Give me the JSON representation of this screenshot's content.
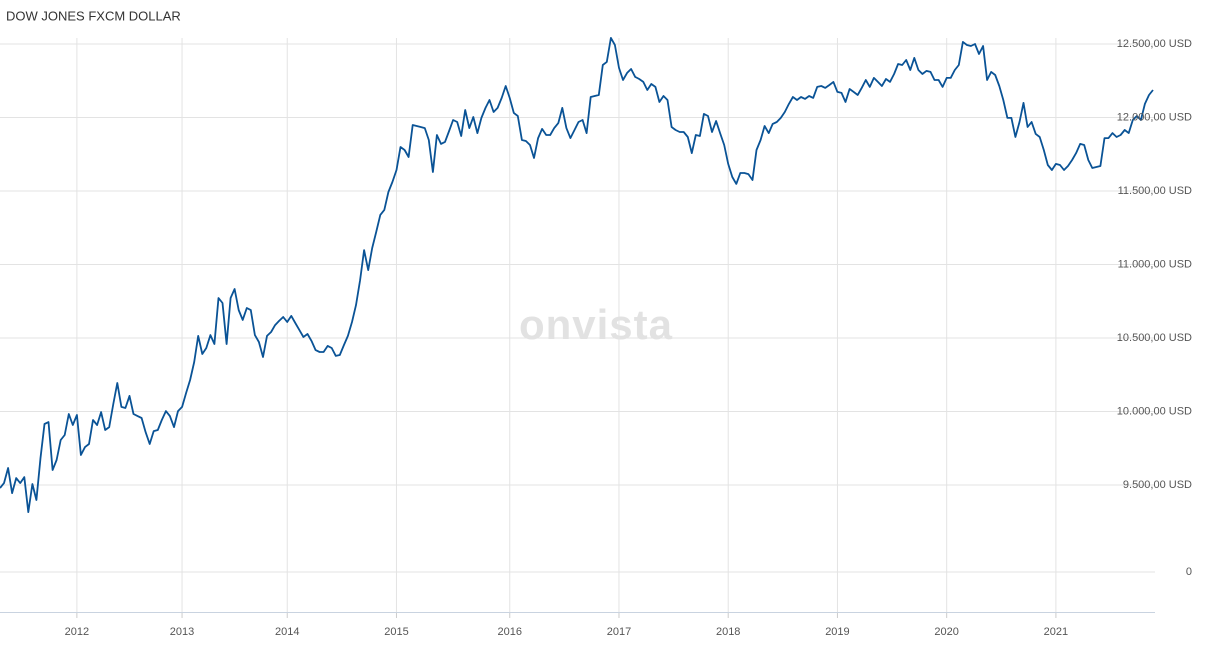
{
  "chart_data": [
    {
      "type": "line",
      "title": "DOW JONES FXCM DOLLAR",
      "watermark": "onvista",
      "color": "#0a5396",
      "ylim": [
        9262,
        12595
      ],
      "yticks": [
        {
          "value": 9500,
          "label": "9.500,00 USD"
        },
        {
          "value": 10000,
          "label": "10.000,00 USD"
        },
        {
          "value": 10500,
          "label": "10.500,00 USD"
        },
        {
          "value": 11000,
          "label": "11.000,00 USD"
        },
        {
          "value": 11500,
          "label": "11.500,00 USD"
        },
        {
          "value": 12000,
          "label": "12.000,00 USD"
        },
        {
          "value": 12500,
          "label": "12.500,00 USD"
        }
      ],
      "categories": [
        null,
        null,
        null,
        null,
        null,
        null,
        null,
        null,
        null,
        null,
        null,
        null,
        null,
        null,
        null,
        null,
        null,
        null,
        null,
        "2012",
        null,
        null,
        null,
        null,
        null,
        null,
        null,
        null,
        null,
        null,
        null,
        null,
        null,
        null,
        null,
        null,
        null,
        null,
        null,
        null,
        null,
        null,
        null,
        null,
        null,
        "2013",
        null,
        null,
        null,
        null,
        null,
        null,
        null,
        null,
        null,
        null,
        null,
        null,
        null,
        null,
        null,
        null,
        null,
        null,
        null,
        null,
        null,
        null,
        null,
        null,
        null,
        "2014",
        null,
        null,
        null,
        null,
        null,
        null,
        null,
        null,
        null,
        null,
        null,
        null,
        null,
        null,
        null,
        null,
        null,
        null,
        null,
        null,
        null,
        null,
        null,
        null,
        null,
        null,
        "2015",
        null,
        null,
        null,
        null,
        null,
        null,
        null,
        null,
        null,
        null,
        null,
        null,
        null,
        null,
        null,
        null,
        null,
        null,
        null,
        null,
        null,
        null,
        null,
        null,
        null,
        null,
        null,
        "2016",
        null,
        null,
        null,
        null,
        null,
        null,
        null,
        null,
        null,
        null,
        null,
        null,
        null,
        null,
        null,
        null,
        null,
        null,
        null,
        null,
        null,
        null,
        null,
        null,
        null,
        null,
        "2017",
        null,
        null,
        null,
        null,
        null,
        null,
        null,
        null,
        null,
        null,
        null,
        null,
        null,
        null,
        null,
        null,
        null,
        null,
        null,
        null,
        null,
        null,
        null,
        null,
        null,
        null,
        "2018",
        null,
        null,
        null,
        null,
        null,
        null,
        null,
        null,
        null,
        null,
        null,
        null,
        null,
        null,
        null,
        null,
        null,
        null,
        null,
        null,
        null,
        null,
        null,
        null,
        null,
        null,
        "2019",
        null,
        null,
        null,
        null,
        null,
        null,
        null,
        null,
        null,
        null,
        null,
        null,
        null,
        null,
        null,
        null,
        null,
        null,
        null,
        null,
        null,
        null,
        null,
        null,
        null,
        null,
        "2020",
        null,
        null,
        null,
        null,
        null,
        null,
        null,
        null,
        null,
        null,
        null,
        null,
        null,
        null,
        null,
        null,
        null,
        null,
        null,
        null,
        null,
        null,
        null,
        null,
        null,
        null,
        "2021",
        null,
        null,
        null,
        null,
        null,
        null,
        null,
        null,
        null,
        null,
        null,
        null,
        null,
        null,
        null,
        null,
        null,
        null,
        null,
        null,
        null,
        null,
        null,
        null
      ],
      "values": [
        9480,
        9513,
        9616,
        9445,
        9547,
        9513,
        9554,
        9316,
        9507,
        9398,
        9684,
        9915,
        9928,
        9602,
        9670,
        9806,
        9840,
        9983,
        9908,
        9976,
        9704,
        9758,
        9779,
        9942,
        9908,
        9996,
        9874,
        9894,
        10051,
        10194,
        10031,
        10024,
        10106,
        9983,
        9969,
        9956,
        9860,
        9779,
        9867,
        9874,
        9942,
        10003,
        9969,
        9894,
        10003,
        10031,
        10126,
        10214,
        10337,
        10514,
        10391,
        10432,
        10520,
        10459,
        10772,
        10738,
        10459,
        10772,
        10833,
        10690,
        10623,
        10704,
        10690,
        10520,
        10473,
        10371,
        10514,
        10541,
        10588,
        10616,
        10643,
        10609,
        10650,
        10602,
        10554,
        10507,
        10527,
        10480,
        10418,
        10405,
        10405,
        10446,
        10432,
        10378,
        10384,
        10452,
        10514,
        10609,
        10724,
        10894,
        11098,
        10962,
        11112,
        11221,
        11337,
        11371,
        11493,
        11561,
        11643,
        11799,
        11779,
        11731,
        11949,
        11942,
        11935,
        11928,
        11847,
        11629,
        11881,
        11820,
        11834,
        11908,
        11983,
        11969,
        11874,
        12051,
        11928,
        12003,
        11894,
        11997,
        12065,
        12119,
        12037,
        12065,
        12133,
        12214,
        12133,
        12031,
        12010,
        11847,
        11840,
        11813,
        11724,
        11860,
        11922,
        11881,
        11881,
        11928,
        11962,
        12065,
        11928,
        11860,
        11915,
        11969,
        11983,
        11894,
        12139,
        12146,
        12153,
        12357,
        12378,
        12541,
        12493,
        12337,
        12255,
        12303,
        12330,
        12276,
        12262,
        12242,
        12187,
        12228,
        12208,
        12105,
        12146,
        12119,
        11935,
        11915,
        11901,
        11901,
        11867,
        11758,
        11881,
        11874,
        12024,
        12010,
        11901,
        11976,
        11894,
        11813,
        11684,
        11595,
        11548,
        11622,
        11622,
        11615,
        11575,
        11779,
        11847,
        11942,
        11894,
        11956,
        11969,
        11997,
        12037,
        12092,
        12139,
        12119,
        12139,
        12126,
        12146,
        12133,
        12208,
        12214,
        12201,
        12221,
        12242,
        12174,
        12167,
        12105,
        12194,
        12174,
        12153,
        12201,
        12255,
        12208,
        12269,
        12242,
        12214,
        12262,
        12242,
        12296,
        12364,
        12357,
        12391,
        12323,
        12405,
        12323,
        12296,
        12317,
        12310,
        12255,
        12255,
        12208,
        12269,
        12269,
        12323,
        12357,
        12514,
        12493,
        12486,
        12500,
        12432,
        12486,
        12255,
        12310,
        12289,
        12214,
        12119,
        11997,
        11997,
        11867,
        11969,
        12099,
        11935,
        11969,
        11888,
        11867,
        11779,
        11677,
        11643,
        11684,
        11677,
        11643,
        11670,
        11711,
        11758,
        11820,
        11813,
        11711,
        11656,
        11663,
        11670,
        11860,
        11860,
        11894,
        11867,
        11881,
        11915,
        11894,
        11983,
        12010,
        11983,
        12092,
        12153,
        12187
      ]
    },
    {
      "type": "volume",
      "ylim": [
        -1,
        1.125
      ],
      "yticks": [
        0
      ]
    }
  ]
}
